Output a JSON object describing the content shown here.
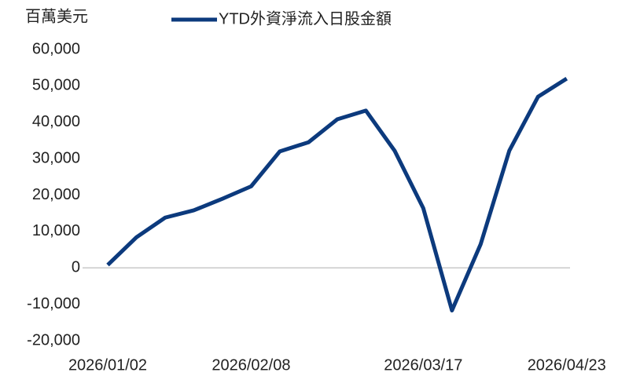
{
  "chart_data": {
    "type": "line",
    "unit_label": "百萬美元",
    "categories": [
      "2026/01/02",
      null,
      null,
      null,
      null,
      "2026/02/08",
      null,
      null,
      null,
      null,
      null,
      "2026/03/17",
      null,
      null,
      null,
      null,
      "2026/04/23"
    ],
    "series": [
      {
        "name": "YTD外資淨流入日股金額",
        "color": "#0c3a7d",
        "values": [
          800,
          8400,
          13800,
          15800,
          19000,
          22400,
          32000,
          34500,
          40800,
          43200,
          32200,
          16400,
          -11700,
          6500,
          32200,
          47000,
          52000
        ]
      }
    ],
    "ylim": [
      -20000,
      60000
    ],
    "yticks": [
      {
        "value": -20000,
        "label": "-20,000"
      },
      {
        "value": -10000,
        "label": "-10,000"
      },
      0,
      {
        "value": 10000,
        "label": "10,000"
      },
      {
        "value": 20000,
        "label": "20,000"
      },
      {
        "value": 30000,
        "label": "30,000"
      },
      {
        "value": 40000,
        "label": "40,000"
      },
      {
        "value": 50000,
        "label": "50,000"
      },
      {
        "value": 60000,
        "label": "60,000"
      }
    ],
    "grid": false
  }
}
